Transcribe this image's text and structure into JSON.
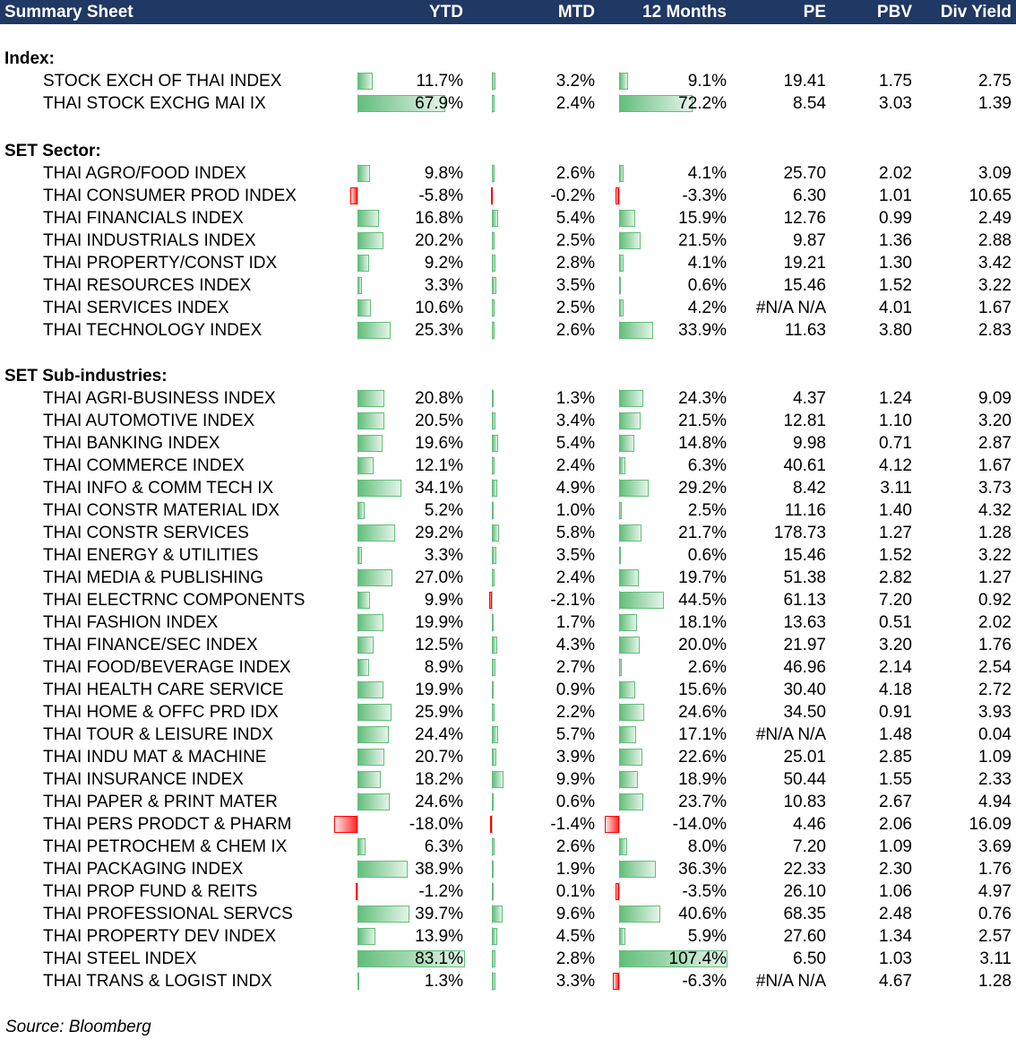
{
  "header": {
    "title": "Summary Sheet",
    "columns": [
      "YTD",
      "MTD",
      "12 Months",
      "PE",
      "PBV",
      "Div Yield"
    ]
  },
  "sections": [
    {
      "label": "Index:",
      "rows": [
        {
          "name": "STOCK EXCH OF THAI INDEX",
          "ytd": "11.7%",
          "mtd": "3.2%",
          "m12": "9.1%",
          "pe": "19.41",
          "pbv": "1.75",
          "dy": "2.75"
        },
        {
          "name": "THAI STOCK EXCHG MAI IX",
          "ytd": "67.9%",
          "mtd": "2.4%",
          "m12": "72.2%",
          "pe": "8.54",
          "pbv": "3.03",
          "dy": "1.39"
        }
      ]
    },
    {
      "label": "SET Sector:",
      "rows": [
        {
          "name": "THAI AGRO/FOOD INDEX",
          "ytd": "9.8%",
          "mtd": "2.6%",
          "m12": "4.1%",
          "pe": "25.70",
          "pbv": "2.02",
          "dy": "3.09"
        },
        {
          "name": "THAI CONSUMER PROD INDEX",
          "ytd": "-5.8%",
          "mtd": "-0.2%",
          "m12": "-3.3%",
          "pe": "6.30",
          "pbv": "1.01",
          "dy": "10.65"
        },
        {
          "name": "THAI FINANCIALS INDEX",
          "ytd": "16.8%",
          "mtd": "5.4%",
          "m12": "15.9%",
          "pe": "12.76",
          "pbv": "0.99",
          "dy": "2.49"
        },
        {
          "name": "THAI INDUSTRIALS INDEX",
          "ytd": "20.2%",
          "mtd": "2.5%",
          "m12": "21.5%",
          "pe": "9.87",
          "pbv": "1.36",
          "dy": "2.88"
        },
        {
          "name": "THAI PROPERTY/CONST IDX",
          "ytd": "9.2%",
          "mtd": "2.8%",
          "m12": "4.1%",
          "pe": "19.21",
          "pbv": "1.30",
          "dy": "3.42"
        },
        {
          "name": "THAI RESOURCES INDEX",
          "ytd": "3.3%",
          "mtd": "3.5%",
          "m12": "0.6%",
          "pe": "15.46",
          "pbv": "1.52",
          "dy": "3.22"
        },
        {
          "name": "THAI SERVICES INDEX",
          "ytd": "10.6%",
          "mtd": "2.5%",
          "m12": "4.2%",
          "pe": "#N/A N/A",
          "pbv": "4.01",
          "dy": "1.67"
        },
        {
          "name": "THAI TECHNOLOGY INDEX",
          "ytd": "25.3%",
          "mtd": "2.6%",
          "m12": "33.9%",
          "pe": "11.63",
          "pbv": "3.80",
          "dy": "2.83"
        }
      ]
    },
    {
      "label": "SET Sub-industries:",
      "rows": [
        {
          "name": "THAI AGRI-BUSINESS INDEX",
          "ytd": "20.8%",
          "mtd": "1.3%",
          "m12": "24.3%",
          "pe": "4.37",
          "pbv": "1.24",
          "dy": "9.09"
        },
        {
          "name": "THAI AUTOMOTIVE INDEX",
          "ytd": "20.5%",
          "mtd": "3.4%",
          "m12": "21.5%",
          "pe": "12.81",
          "pbv": "1.10",
          "dy": "3.20"
        },
        {
          "name": "THAI BANKING INDEX",
          "ytd": "19.6%",
          "mtd": "5.4%",
          "m12": "14.8%",
          "pe": "9.98",
          "pbv": "0.71",
          "dy": "2.87"
        },
        {
          "name": "THAI COMMERCE INDEX",
          "ytd": "12.1%",
          "mtd": "2.4%",
          "m12": "6.3%",
          "pe": "40.61",
          "pbv": "4.12",
          "dy": "1.67"
        },
        {
          "name": "THAI INFO & COMM TECH IX",
          "ytd": "34.1%",
          "mtd": "4.9%",
          "m12": "29.2%",
          "pe": "8.42",
          "pbv": "3.11",
          "dy": "3.73"
        },
        {
          "name": "THAI CONSTR MATERIAL IDX",
          "ytd": "5.2%",
          "mtd": "1.0%",
          "m12": "2.5%",
          "pe": "11.16",
          "pbv": "1.40",
          "dy": "4.32"
        },
        {
          "name": "THAI CONSTR SERVICES",
          "ytd": "29.2%",
          "mtd": "5.8%",
          "m12": "21.7%",
          "pe": "178.73",
          "pbv": "1.27",
          "dy": "1.28"
        },
        {
          "name": "THAI ENERGY & UTILITIES",
          "ytd": "3.3%",
          "mtd": "3.5%",
          "m12": "0.6%",
          "pe": "15.46",
          "pbv": "1.52",
          "dy": "3.22"
        },
        {
          "name": "THAI MEDIA & PUBLISHING",
          "ytd": "27.0%",
          "mtd": "2.4%",
          "m12": "19.7%",
          "pe": "51.38",
          "pbv": "2.82",
          "dy": "1.27"
        },
        {
          "name": "THAI ELECTRNC COMPONENTS",
          "ytd": "9.9%",
          "mtd": "-2.1%",
          "m12": "44.5%",
          "pe": "61.13",
          "pbv": "7.20",
          "dy": "0.92"
        },
        {
          "name": "THAI FASHION INDEX",
          "ytd": "19.9%",
          "mtd": "1.7%",
          "m12": "18.1%",
          "pe": "13.63",
          "pbv": "0.51",
          "dy": "2.02"
        },
        {
          "name": "THAI FINANCE/SEC INDEX",
          "ytd": "12.5%",
          "mtd": "4.3%",
          "m12": "20.0%",
          "pe": "21.97",
          "pbv": "3.20",
          "dy": "1.76"
        },
        {
          "name": "THAI FOOD/BEVERAGE INDEX",
          "ytd": "8.9%",
          "mtd": "2.7%",
          "m12": "2.6%",
          "pe": "46.96",
          "pbv": "2.14",
          "dy": "2.54"
        },
        {
          "name": "THAI HEALTH CARE SERVICE",
          "ytd": "19.9%",
          "mtd": "0.9%",
          "m12": "15.6%",
          "pe": "30.40",
          "pbv": "4.18",
          "dy": "2.72"
        },
        {
          "name": "THAI HOME & OFFC PRD IDX",
          "ytd": "25.9%",
          "mtd": "2.2%",
          "m12": "24.6%",
          "pe": "34.50",
          "pbv": "0.91",
          "dy": "3.93"
        },
        {
          "name": "THAI TOUR & LEISURE INDX",
          "ytd": "24.4%",
          "mtd": "5.7%",
          "m12": "17.1%",
          "pe": "#N/A N/A",
          "pbv": "1.48",
          "dy": "0.04"
        },
        {
          "name": "THAI INDU MAT & MACHINE",
          "ytd": "20.7%",
          "mtd": "3.9%",
          "m12": "22.6%",
          "pe": "25.01",
          "pbv": "2.85",
          "dy": "1.09"
        },
        {
          "name": "THAI INSURANCE INDEX",
          "ytd": "18.2%",
          "mtd": "9.9%",
          "m12": "18.9%",
          "pe": "50.44",
          "pbv": "1.55",
          "dy": "2.33"
        },
        {
          "name": "THAI PAPER & PRINT MATER",
          "ytd": "24.6%",
          "mtd": "0.6%",
          "m12": "23.7%",
          "pe": "10.83",
          "pbv": "2.67",
          "dy": "4.94"
        },
        {
          "name": "THAI PERS PRODCT & PHARM",
          "ytd": "-18.0%",
          "mtd": "-1.4%",
          "m12": "-14.0%",
          "pe": "4.46",
          "pbv": "2.06",
          "dy": "16.09"
        },
        {
          "name": "THAI PETROCHEM & CHEM IX",
          "ytd": "6.3%",
          "mtd": "2.6%",
          "m12": "8.0%",
          "pe": "7.20",
          "pbv": "1.09",
          "dy": "3.69"
        },
        {
          "name": "THAI PACKAGING INDEX",
          "ytd": "38.9%",
          "mtd": "1.9%",
          "m12": "36.3%",
          "pe": "22.33",
          "pbv": "2.30",
          "dy": "1.76"
        },
        {
          "name": "THAI PROP FUND & REITS",
          "ytd": "-1.2%",
          "mtd": "0.1%",
          "m12": "-3.5%",
          "pe": "26.10",
          "pbv": "1.06",
          "dy": "4.97"
        },
        {
          "name": "THAI PROFESSIONAL SERVCS",
          "ytd": "39.7%",
          "mtd": "9.6%",
          "m12": "40.6%",
          "pe": "68.35",
          "pbv": "2.48",
          "dy": "0.76"
        },
        {
          "name": "THAI PROPERTY DEV INDEX",
          "ytd": "13.9%",
          "mtd": "4.5%",
          "m12": "5.9%",
          "pe": "27.60",
          "pbv": "1.34",
          "dy": "2.57"
        },
        {
          "name": "THAI STEEL INDEX",
          "ytd": "83.1%",
          "mtd": "2.8%",
          "m12": "107.4%",
          "pe": "6.50",
          "pbv": "1.03",
          "dy": "3.11"
        },
        {
          "name": "THAI TRANS & LOGIST INDX",
          "ytd": "1.3%",
          "mtd": "3.3%",
          "m12": "-6.3%",
          "pe": "#N/A N/A",
          "pbv": "4.67",
          "dy": "1.28"
        }
      ]
    }
  ],
  "footer": {
    "source": "Source: Bloomberg"
  },
  "colors": {
    "header_bg": "#1f3864",
    "positive_bar": "#63be7b",
    "negative_bar": "#ff0000"
  }
}
